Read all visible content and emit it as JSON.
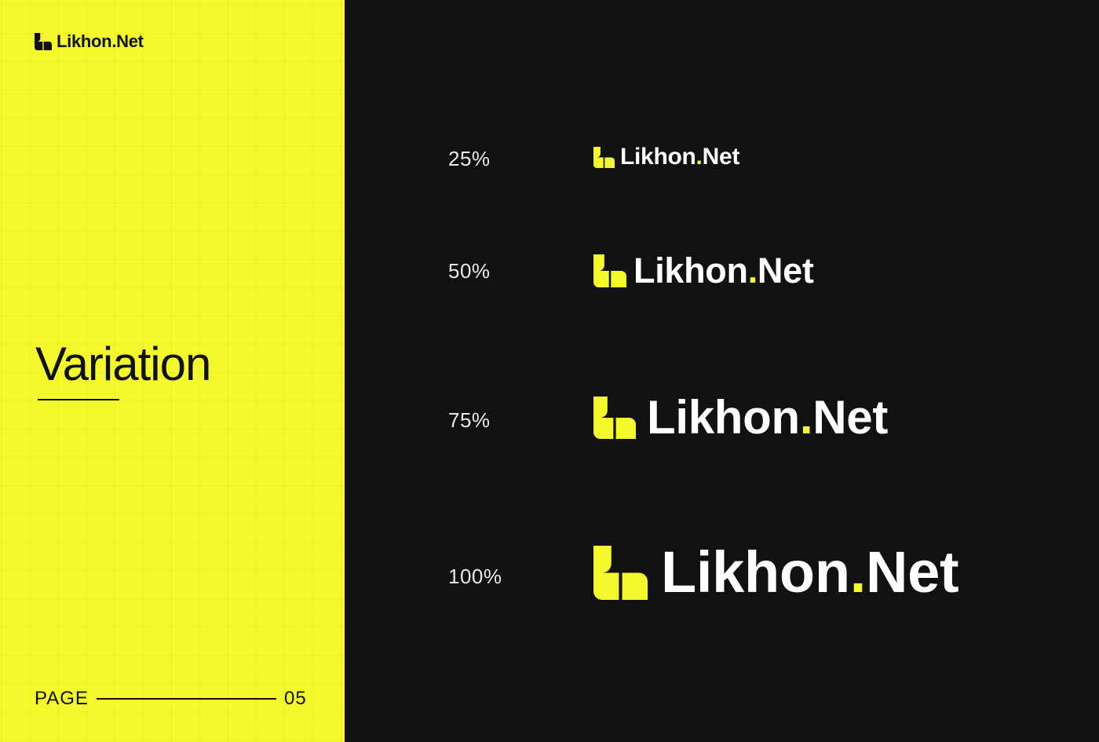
{
  "brand": {
    "name_main": "Likhon",
    "name_dot": ".",
    "name_tail": "Net",
    "accent_color": "#f4f92c",
    "dark_color": "#111111",
    "logo_icon": "likhon-mark-icon"
  },
  "left_panel": {
    "title": "Variation",
    "page_label": "PAGE",
    "page_number": "05"
  },
  "variations": [
    {
      "label": "25%",
      "scale": 0.25
    },
    {
      "label": "50%",
      "scale": 0.5
    },
    {
      "label": "75%",
      "scale": 0.75
    },
    {
      "label": "100%",
      "scale": 1.0
    }
  ]
}
